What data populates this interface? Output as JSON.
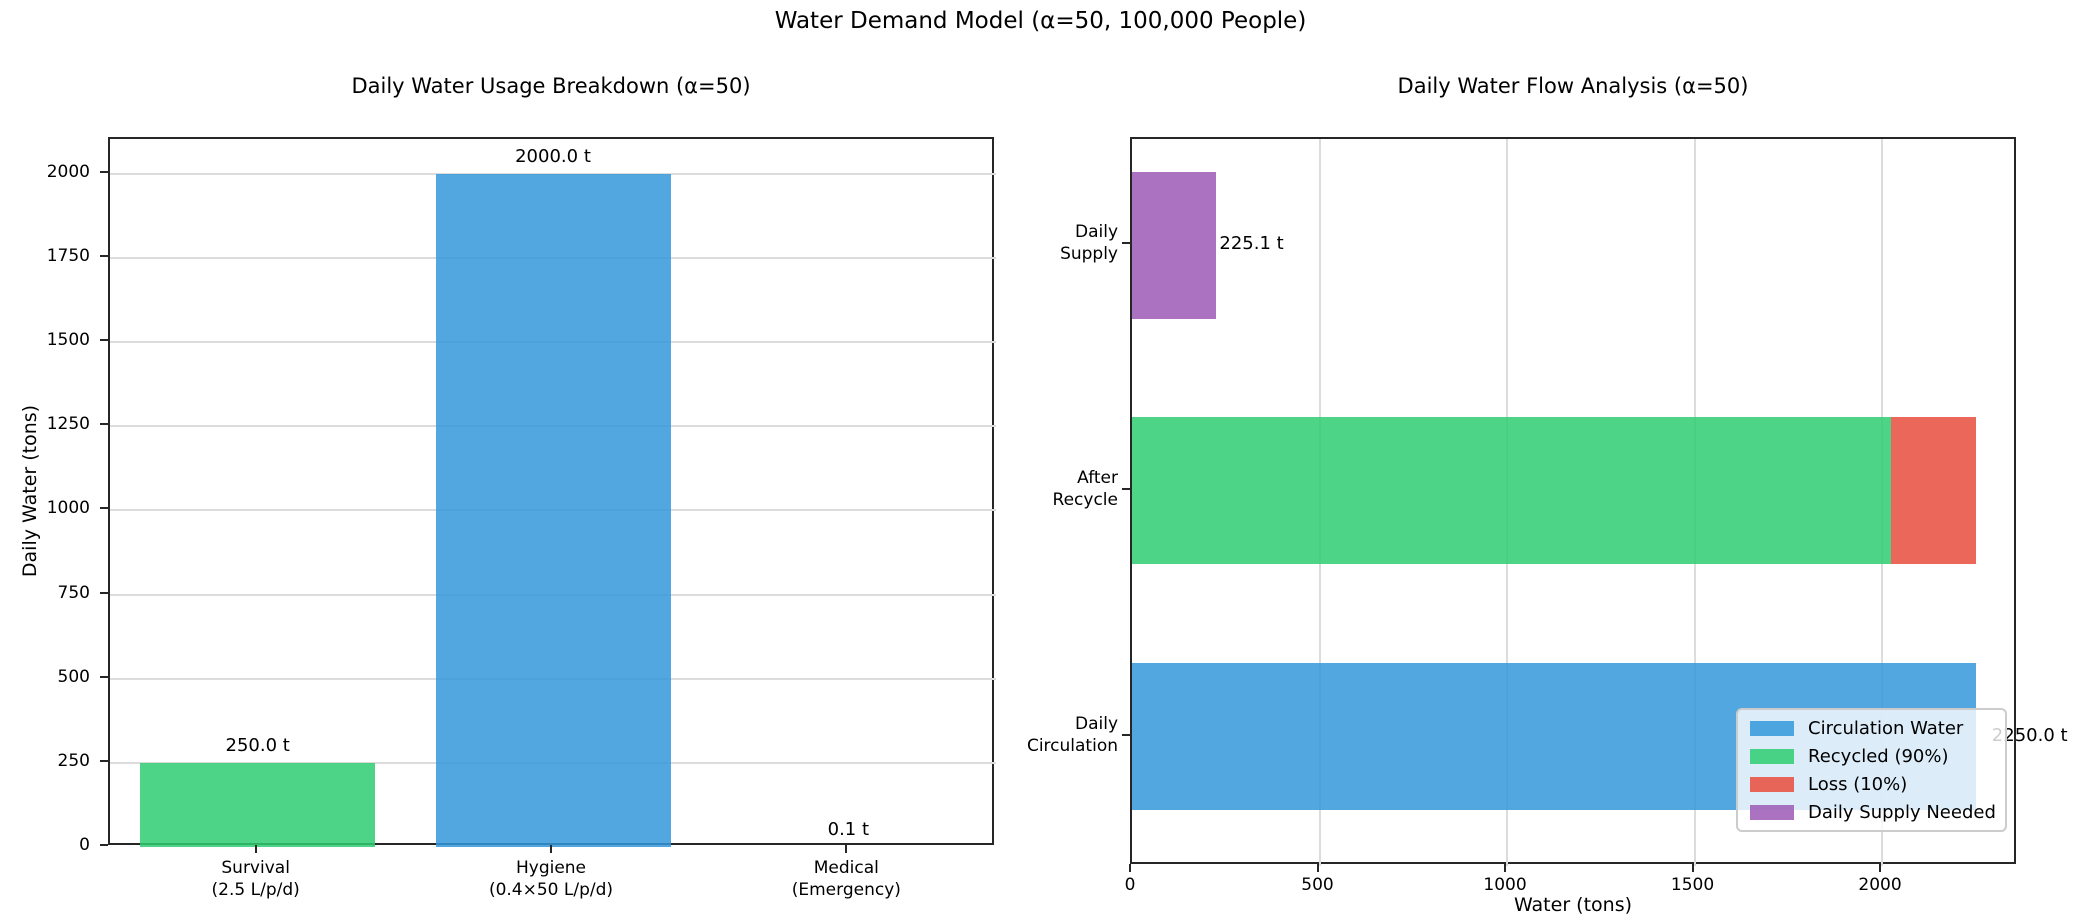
{
  "figure": {
    "title": "Water Demand Model (α=50, 100,000 People)"
  },
  "colors": {
    "blue": "#3498DB",
    "green": "#2ECC71",
    "red": "#E74C3C",
    "purple": "#9B59B6",
    "grid": "#dcdcdc",
    "spine": "#262626",
    "legend_edge": "#cccccc"
  },
  "chart_data": [
    {
      "type": "bar",
      "title": "Daily Water Usage Breakdown (α=50)",
      "ylabel": "Daily Water (tons)",
      "categories": [
        "Survival\n(2.5 L/p/d)",
        "Hygiene\n(0.4×50 L/p/d)",
        "Medical\n(Emergency)"
      ],
      "values": [
        250.0,
        2000.0,
        0.1
      ],
      "bar_colors": [
        "#2ECC71",
        "#3498DB",
        "#E74C3C"
      ],
      "value_labels": [
        "250.0 t",
        "2000.0 t",
        "0.1 t"
      ],
      "yticks": [
        0,
        250,
        500,
        750,
        1000,
        1250,
        1500,
        1750,
        2000
      ],
      "ylim": [
        0,
        2104
      ],
      "grid": true,
      "grid_axis": "y"
    },
    {
      "type": "barh-stacked",
      "title": "Daily Water Flow Analysis (α=50)",
      "xlabel": "Water (tons)",
      "categories": [
        "Daily\nSupply",
        "After\nRecycle",
        "Daily\nCirculation"
      ],
      "series": [
        {
          "name": "Circulation Water",
          "color": "#3498DB",
          "values": [
            0,
            0,
            2250.0
          ]
        },
        {
          "name": "Recycled (90%)",
          "color": "#2ECC71",
          "values": [
            0,
            2025.0,
            0
          ]
        },
        {
          "name": "Loss (10%)",
          "color": "#E74C3C",
          "values": [
            0,
            225.0,
            0
          ]
        },
        {
          "name": "Daily Supply Needed",
          "color": "#9B59B6",
          "values": [
            225.1,
            0,
            0
          ]
        }
      ],
      "annotations": [
        {
          "row": 0,
          "label": "225.1 t"
        },
        {
          "row": 2,
          "label": "2250.0 t"
        }
      ],
      "xticks": [
        0,
        500,
        1000,
        1500,
        2000
      ],
      "xlim": [
        0,
        2362.5
      ],
      "grid": true,
      "grid_axis": "x",
      "legend_position": "lower right"
    }
  ]
}
